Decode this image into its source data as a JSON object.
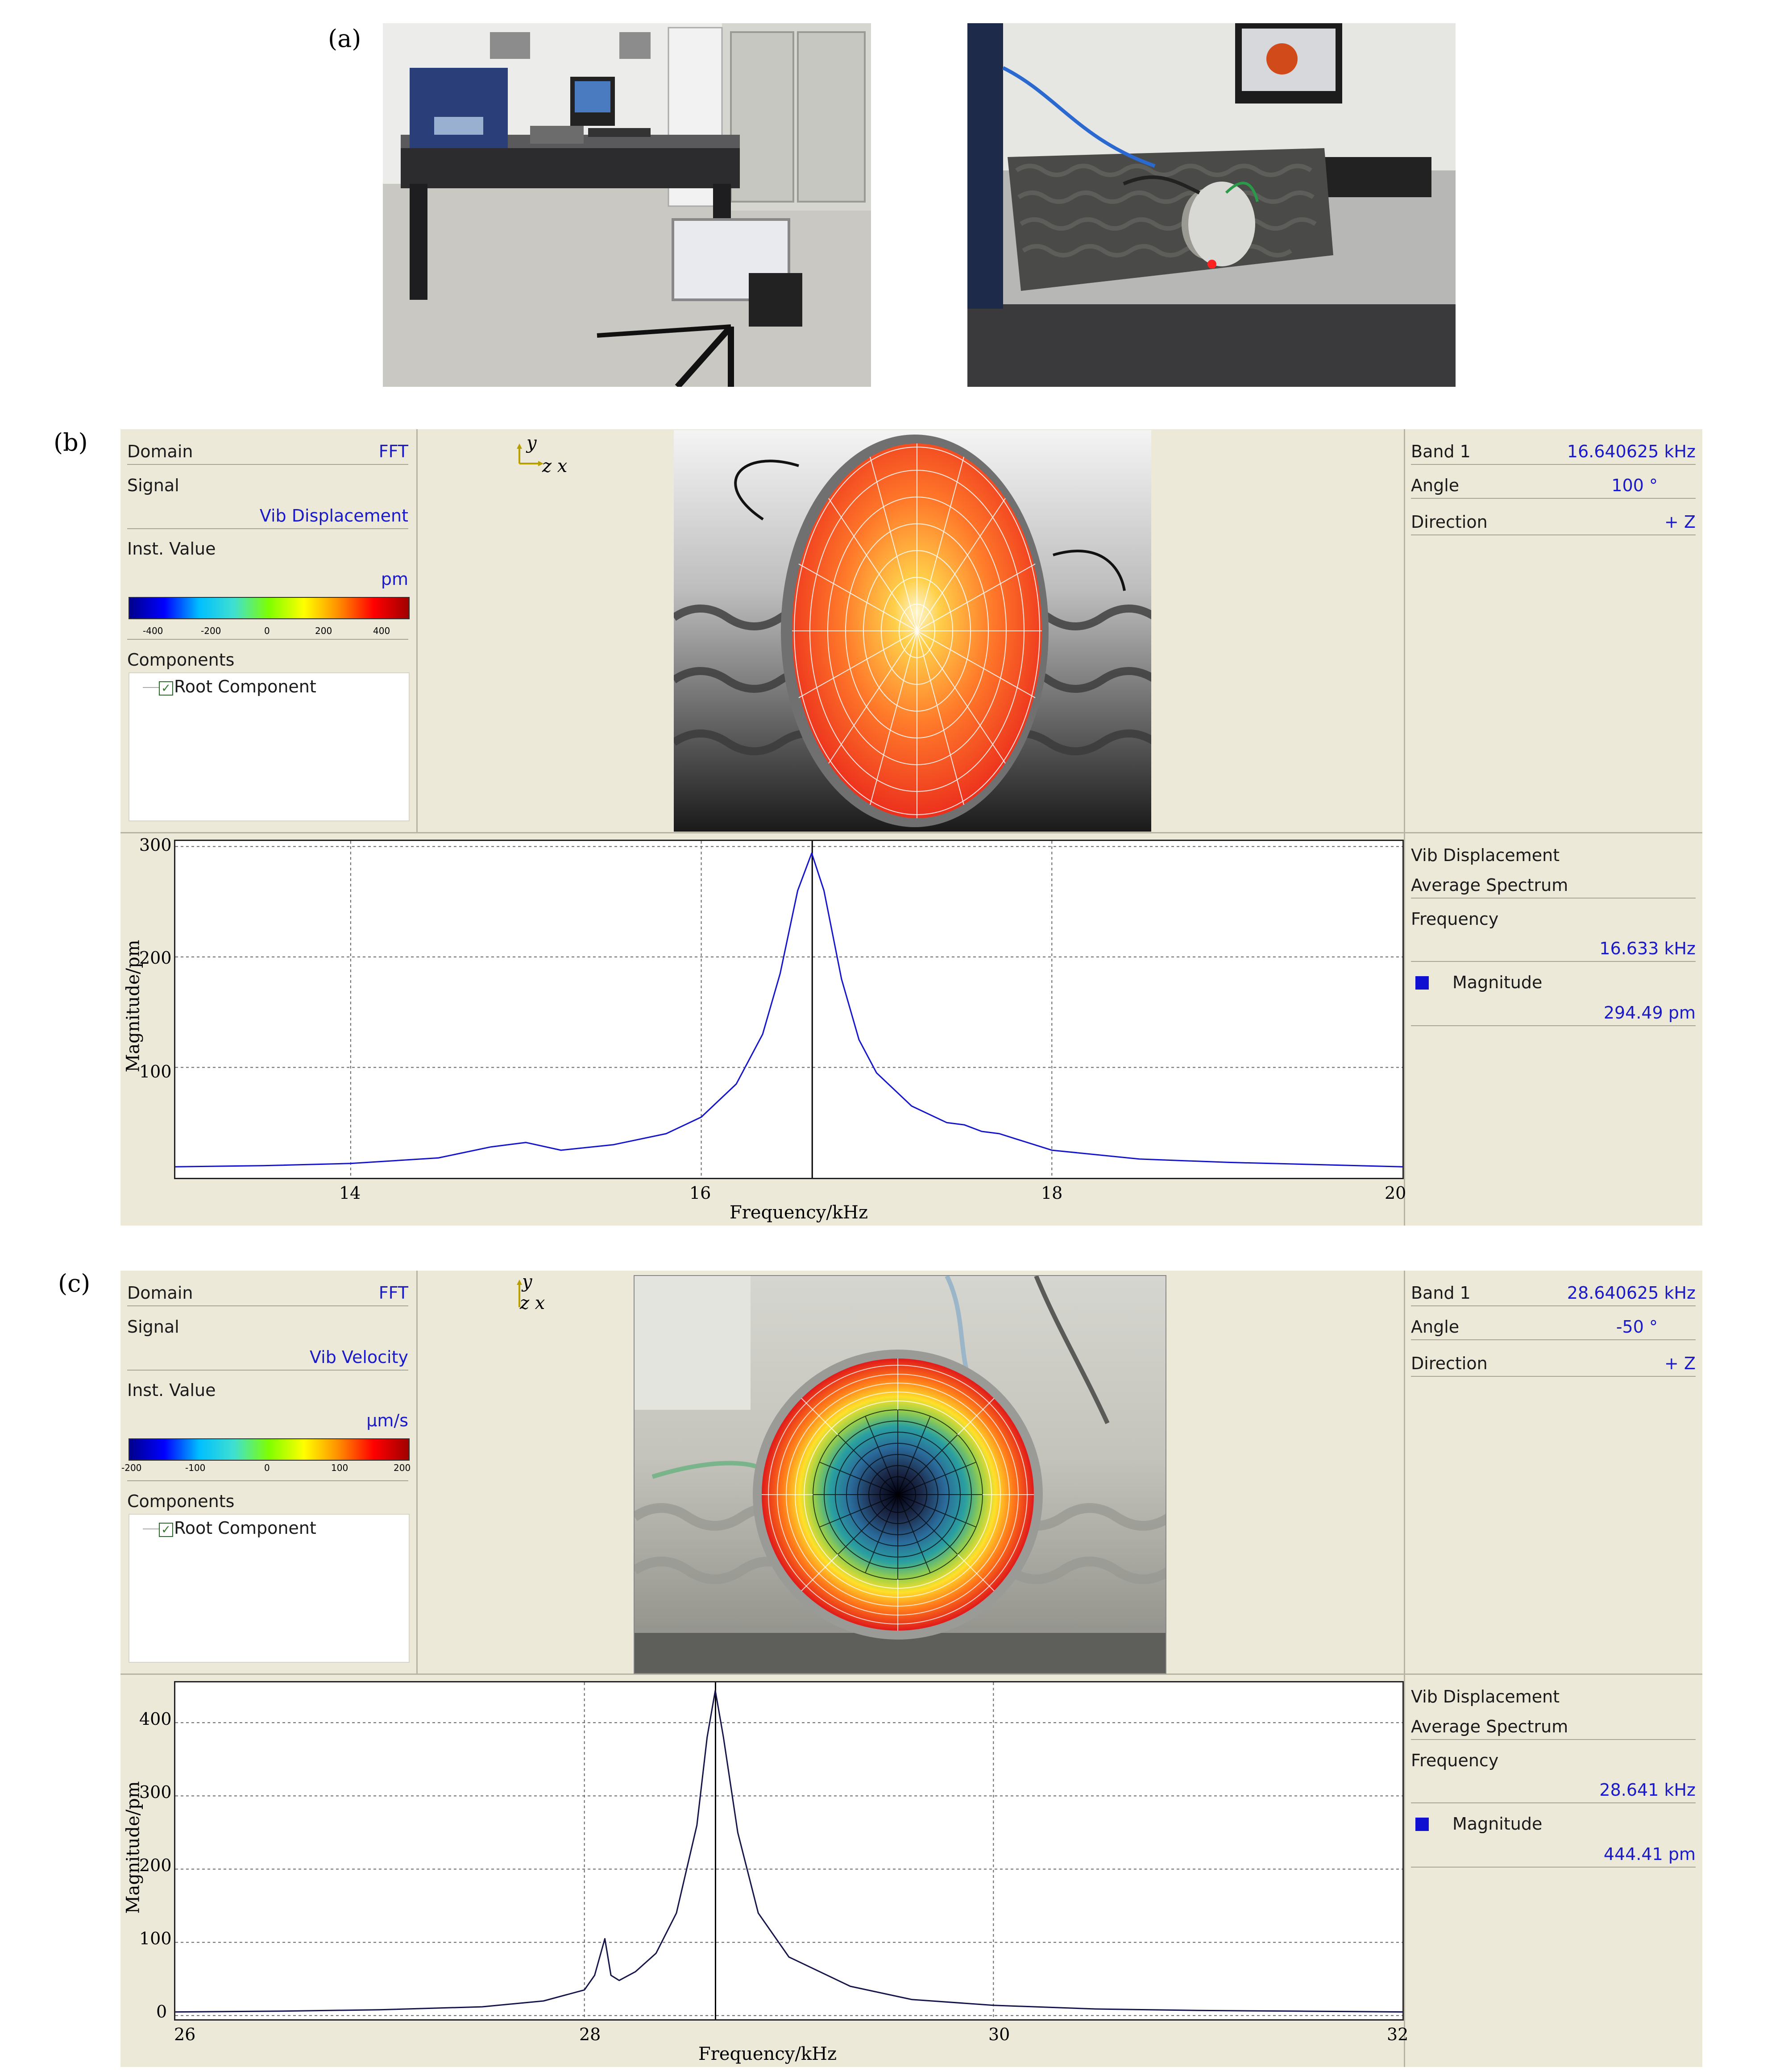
{
  "panel_labels": {
    "a": "(a)",
    "b": "(b)",
    "c": "(c)"
  },
  "panel_b": {
    "left": {
      "domain_label": "Domain",
      "domain_value": "FFT",
      "signal_label": "Signal",
      "signal_value": "Vib Displacement",
      "inst_label": "Inst. Value",
      "unit": "pm",
      "colorbar_ticks": [
        "-400",
        "-200",
        "0",
        "200",
        "400"
      ],
      "components_label": "Components",
      "root_component": "Root Component"
    },
    "axes": {
      "y": "y",
      "zx": "z x"
    },
    "right_top": {
      "band_label": "Band 1",
      "band_value": "16.640625 kHz",
      "angle_label": "Angle",
      "angle_value": "100 °",
      "direction_label": "Direction",
      "direction_value": "+ Z"
    },
    "right_bottom": {
      "line1": "Vib Displacement",
      "line2": "Average Spectrum",
      "freq_label": "Frequency",
      "freq_value": "16.633 kHz",
      "mag_label": "Magnitude",
      "mag_value": "294.49 pm"
    },
    "chart": {
      "xlabel": "Frequency/kHz",
      "ylabel": "Magnitude/pm",
      "xticks": [
        "14",
        "16",
        "18",
        "20"
      ],
      "yticks": [
        "300",
        "200",
        "100"
      ]
    }
  },
  "panel_c": {
    "left": {
      "domain_label": "Domain",
      "domain_value": "FFT",
      "signal_label": "Signal",
      "signal_value": "Vib Velocity",
      "inst_label": "Inst. Value",
      "unit": "µm/s",
      "colorbar_ticks": [
        "-200",
        "-100",
        "0",
        "100",
        "200"
      ],
      "components_label": "Components",
      "root_component": "Root Component"
    },
    "axes": {
      "y": "y",
      "zx": "z x"
    },
    "right_top": {
      "band_label": "Band 1",
      "band_value": "28.640625 kHz",
      "angle_label": "Angle",
      "angle_value": "-50 °",
      "direction_label": "Direction",
      "direction_value": "+ Z"
    },
    "right_bottom": {
      "line1": "Vib Displacement",
      "line2": "Average Spectrum",
      "freq_label": "Frequency",
      "freq_value": "28.641 kHz",
      "mag_label": "Magnitude",
      "mag_value": "444.41 pm"
    },
    "chart": {
      "xlabel": "Frequency/kHz",
      "ylabel": "Magnitude/pm",
      "xticks": [
        "26",
        "28",
        "30",
        "32"
      ],
      "yticks": [
        "400",
        "300",
        "200",
        "100",
        "0"
      ]
    }
  },
  "chart_data": [
    {
      "type": "line",
      "xlabel": "Frequency/kHz",
      "ylabel": "Magnitude/pm",
      "xlim": [
        13.0,
        20.0
      ],
      "ylim": [
        0,
        305
      ],
      "grid": true,
      "series": [
        {
          "color": "#1414c8",
          "x": [
            13.0,
            13.5,
            14.0,
            14.5,
            14.8,
            15.0,
            15.2,
            15.5,
            15.8,
            16.0,
            16.2,
            16.35,
            16.45,
            16.55,
            16.63,
            16.7,
            16.8,
            16.9,
            17.0,
            17.2,
            17.4,
            17.5,
            17.6,
            17.7,
            17.8,
            18.0,
            18.5,
            19.0,
            19.5,
            20.0
          ],
          "y": [
            10,
            11,
            13,
            18,
            28,
            32,
            25,
            30,
            40,
            55,
            85,
            130,
            185,
            260,
            294,
            260,
            180,
            125,
            95,
            65,
            50,
            48,
            42,
            40,
            35,
            25,
            17,
            14,
            12,
            10
          ]
        }
      ],
      "marker_x": 16.633
    },
    {
      "type": "line",
      "xlabel": "Frequency/kHz",
      "ylabel": "Magnitude/pm",
      "xlim": [
        26.0,
        32.0
      ],
      "ylim": [
        -5,
        455
      ],
      "grid": true,
      "series": [
        {
          "color": "#14144a",
          "x": [
            26.0,
            26.5,
            27.0,
            27.5,
            27.8,
            28.0,
            28.05,
            28.1,
            28.13,
            28.17,
            28.25,
            28.35,
            28.45,
            28.55,
            28.6,
            28.64,
            28.68,
            28.75,
            28.85,
            29.0,
            29.3,
            29.6,
            30.0,
            30.5,
            31.0,
            31.5,
            32.0
          ],
          "y": [
            5,
            6,
            8,
            12,
            20,
            35,
            55,
            105,
            55,
            48,
            60,
            85,
            140,
            260,
            380,
            444,
            380,
            250,
            140,
            80,
            40,
            22,
            14,
            9,
            7,
            6,
            5
          ]
        }
      ],
      "marker_x": 28.641
    }
  ]
}
